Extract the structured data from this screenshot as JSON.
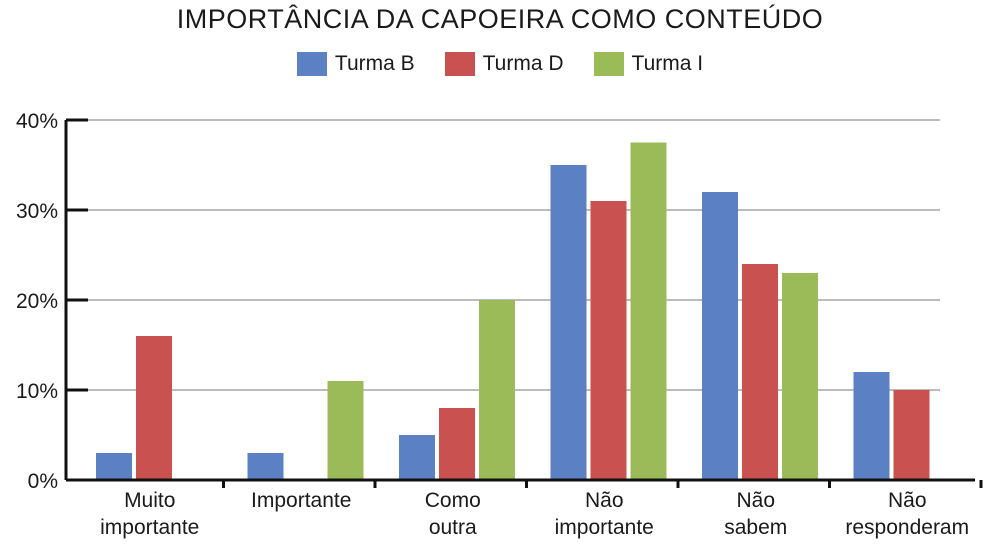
{
  "chart_data": {
    "type": "bar",
    "title": "IMPORTÂNCIA DA CAPOEIRA COMO CONTEÚDO",
    "categories": [
      [
        "Muito",
        "importante"
      ],
      [
        "Importante"
      ],
      [
        "Como",
        "outra"
      ],
      [
        "Não",
        "importante"
      ],
      [
        "Não",
        "sabem"
      ],
      [
        "Não",
        "responderam"
      ]
    ],
    "series": [
      {
        "name": "Turma B",
        "color": "#5b80c4",
        "values": [
          3,
          3,
          5,
          35,
          32,
          12
        ]
      },
      {
        "name": "Turma D",
        "color": "#c9514f",
        "values": [
          16,
          0,
          8,
          31,
          24,
          10
        ]
      },
      {
        "name": "Turma I",
        "color": "#9bbb59",
        "values": [
          0,
          11,
          20,
          37.5,
          23,
          0
        ]
      }
    ],
    "yticks": [
      "0%",
      "10%",
      "20%",
      "30%",
      "40%"
    ],
    "ylim": [
      0,
      40
    ],
    "grid": true,
    "legend": "top-center"
  }
}
